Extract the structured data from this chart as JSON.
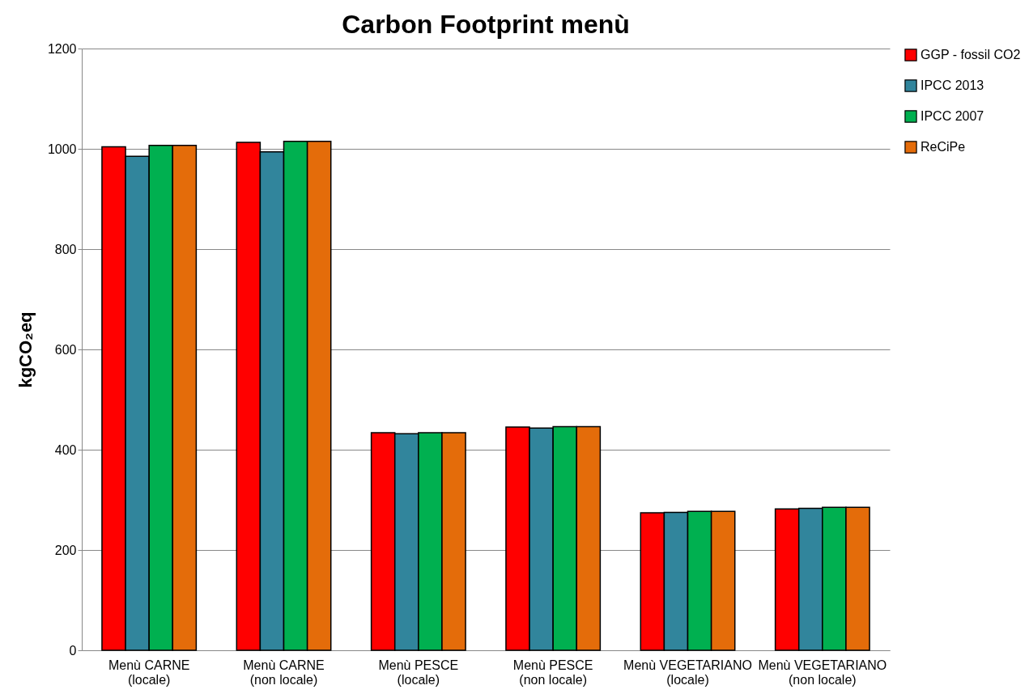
{
  "chart_data": {
    "type": "bar",
    "title": "Carbon Footprint menù",
    "ylabel": "kgCO₂eq",
    "categories": [
      "Menù CARNE (locale)",
      "Menù CARNE (non locale)",
      "Menù PESCE (locale)",
      "Menù PESCE (non locale)",
      "Menù VEGETARIANO (locale)",
      "Menù VEGETARIANO (non locale)"
    ],
    "series": [
      {
        "name": "GGP - fossil CO2",
        "color": "#ff0000",
        "values": [
          1004,
          1013,
          434,
          445,
          274,
          282
        ]
      },
      {
        "name": "IPCC 2013",
        "color": "#31859c",
        "values": [
          985,
          994,
          432,
          443,
          275,
          283
        ]
      },
      {
        "name": "IPCC 2007",
        "color": "#00b050",
        "values": [
          1007,
          1015,
          434,
          446,
          277,
          285
        ]
      },
      {
        "name": "ReCiPe",
        "color": "#e46c0a",
        "values": [
          1007,
          1015,
          434,
          446,
          277,
          285
        ]
      }
    ],
    "ylim": [
      0,
      1200
    ],
    "yticks": [
      0,
      200,
      400,
      600,
      800,
      1000,
      1200
    ],
    "grid": "y",
    "legend": "right"
  }
}
